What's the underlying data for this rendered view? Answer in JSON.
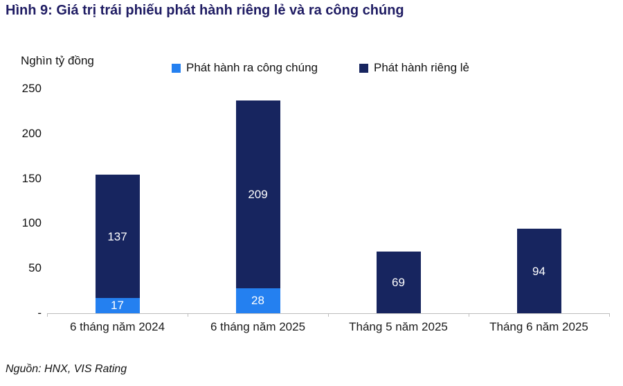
{
  "title": "Hình 9: Giá trị trái phiếu phát hành riêng lẻ và ra công chúng",
  "source": "Nguồn: HNX, VIS Rating",
  "colors": {
    "title_text": "#1f1c63",
    "public_series": "#2480f0",
    "private_series": "#17255f",
    "axis_line": "#bdbdbd"
  },
  "chart_data": {
    "type": "bar",
    "stacked": true,
    "title": "Hình 9: Giá trị trái phiếu phát hành riêng lẻ và ra công chúng",
    "ylabel": "Nghìn tỷ đồng",
    "xlabel": "",
    "ylim": [
      0,
      250
    ],
    "yticks": [
      "250",
      "200",
      "150",
      "100",
      "50",
      "-"
    ],
    "grid": false,
    "legend_position": "top",
    "categories": [
      "6 tháng năm 2024",
      "6 tháng năm 2025",
      "Tháng 5 năm 2025",
      "Tháng 6 năm 2025"
    ],
    "series": [
      {
        "name": "Phát hành ra công chúng",
        "color": "#2480f0",
        "values": [
          17,
          28,
          0,
          0
        ]
      },
      {
        "name": "Phát hành riêng lẻ",
        "color": "#17255f",
        "values": [
          137,
          209,
          69,
          94
        ]
      }
    ],
    "totals": [
      154,
      237,
      69,
      94
    ]
  }
}
